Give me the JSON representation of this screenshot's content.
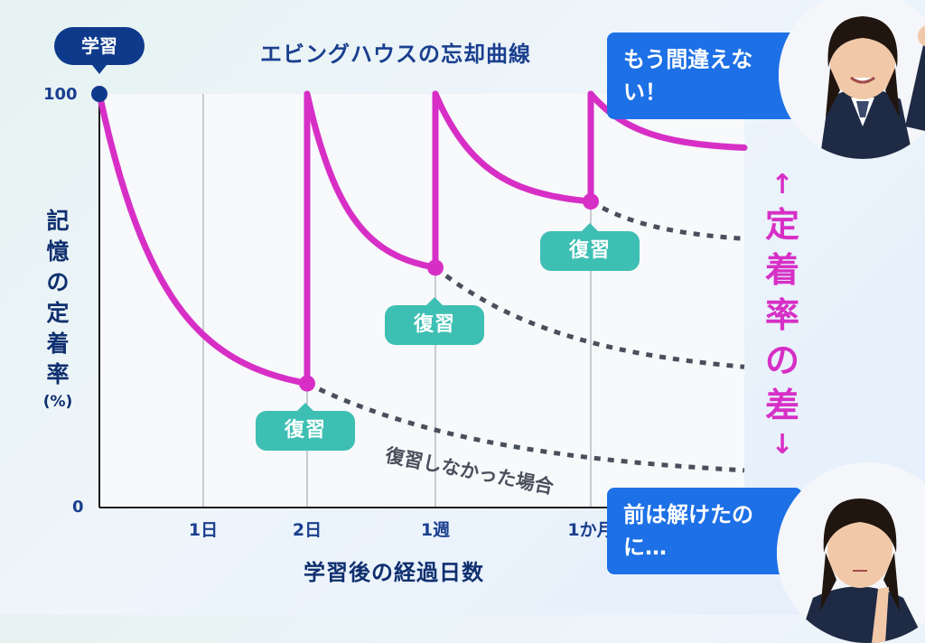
{
  "chart_data": {
    "type": "line",
    "title": "エビングハウスの忘却曲線",
    "ylabel": "記憶の定着率",
    "ylabel_unit": "(%)",
    "xlabel": "学習後の経過日数",
    "ylim": [
      0,
      100
    ],
    "y_ticks": [
      "100",
      "0"
    ],
    "x_ticks": [
      "1日",
      "2日",
      "1週",
      "1か月"
    ],
    "series": [
      {
        "name": "",
        "style": "solid",
        "color": "#d72fc6",
        "points": [
          {
            "x": "学習",
            "y": 100
          },
          {
            "x": "2日",
            "y": 30
          },
          {
            "x": "2日",
            "y": 100
          },
          {
            "x": "1週",
            "y": 58
          },
          {
            "x": "1週",
            "y": 100
          },
          {
            "x": "1か月",
            "y": 74
          },
          {
            "x": "1か月",
            "y": 100
          },
          {
            "x": "end",
            "y": 87
          }
        ]
      },
      {
        "name": "復習しなかった場合",
        "style": "dotted",
        "color": "#4a4f5c",
        "segments": [
          [
            {
              "x": "2日",
              "y": 30
            },
            {
              "x": "end",
              "y": 9
            }
          ],
          [
            {
              "x": "1週",
              "y": 58
            },
            {
              "x": "end",
              "y": 34
            }
          ],
          [
            {
              "x": "1か月",
              "y": 74
            },
            {
              "x": "end",
              "y": 65
            }
          ]
        ]
      }
    ],
    "annotations": {
      "start_badge": "学習",
      "review_badges": [
        "復習",
        "復習",
        "復習"
      ],
      "no_review_label": "復習しなかった場合",
      "difference_label": "定着率の差"
    }
  },
  "arrows": {
    "up": "↑",
    "down": "↓"
  },
  "bubbles": {
    "top": "もう間違えない！",
    "bottom": "前は解けたのに…"
  },
  "photos": {
    "top": "student-happy",
    "bottom": "student-thinking"
  },
  "colors": {
    "curve": "#d72fc6",
    "badge": "#3ebfb4",
    "bubble": "#1d70e6",
    "navy": "#0f3a8c",
    "dotted": "#4a4f5c"
  }
}
